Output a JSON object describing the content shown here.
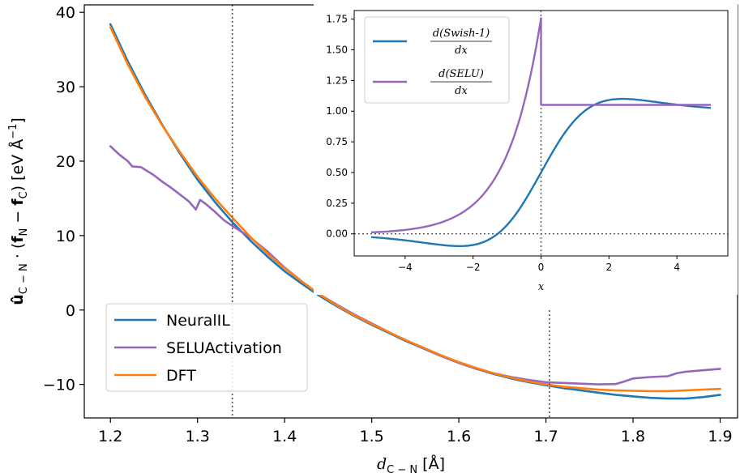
{
  "colors": {
    "neuralil": "#1f77b4",
    "selu": "#9467bd",
    "dft": "#ff7f0e",
    "refline": "#555555"
  },
  "chart_data": [
    {
      "id": "main",
      "type": "line",
      "xlabel": "d_C−N [Å]",
      "ylabel": "û_C−N · (f_N − f_C) [eV Å⁻¹]",
      "xlim": [
        1.17,
        1.92
      ],
      "ylim": [
        -14.5,
        41
      ],
      "xticks": [
        1.2,
        1.3,
        1.4,
        1.5,
        1.6,
        1.7,
        1.8,
        1.9
      ],
      "xtick_labels": [
        "1.2",
        "1.3",
        "1.4",
        "1.5",
        "1.6",
        "1.7",
        "1.8",
        "1.9"
      ],
      "yticks": [
        -10,
        0,
        10,
        20,
        30,
        40
      ],
      "ytick_labels": [
        "−10",
        "0",
        "10",
        "20",
        "30",
        "40"
      ],
      "vlines": [
        1.34,
        1.704
      ],
      "legend": {
        "placement": "lower-left",
        "entries": [
          "NeuralIL",
          "SELUActivation",
          "DFT"
        ]
      },
      "series": [
        {
          "name": "NeuralIL",
          "color_key": "neuralil",
          "points": [
            [
              1.2,
              38.4
            ],
            [
              1.22,
              33.4
            ],
            [
              1.24,
              28.9
            ],
            [
              1.26,
              24.8
            ],
            [
              1.28,
              21.0
            ],
            [
              1.3,
              17.5
            ],
            [
              1.32,
              14.5
            ],
            [
              1.34,
              11.8
            ],
            [
              1.36,
              9.4
            ],
            [
              1.38,
              7.2
            ],
            [
              1.4,
              5.2
            ],
            [
              1.42,
              3.5
            ],
            [
              1.44,
              1.9
            ],
            [
              1.46,
              0.5
            ],
            [
              1.48,
              -0.8
            ],
            [
              1.5,
              -2.0
            ],
            [
              1.52,
              -3.1
            ],
            [
              1.54,
              -4.2
            ],
            [
              1.56,
              -5.2
            ],
            [
              1.58,
              -6.2
            ],
            [
              1.6,
              -7.1
            ],
            [
              1.62,
              -7.9
            ],
            [
              1.64,
              -8.6
            ],
            [
              1.66,
              -9.2
            ],
            [
              1.68,
              -9.7
            ],
            [
              1.7,
              -10.1
            ],
            [
              1.72,
              -10.5
            ],
            [
              1.74,
              -10.8
            ],
            [
              1.76,
              -11.1
            ],
            [
              1.78,
              -11.4
            ],
            [
              1.8,
              -11.6
            ],
            [
              1.82,
              -11.8
            ],
            [
              1.84,
              -11.9
            ],
            [
              1.86,
              -11.9
            ],
            [
              1.88,
              -11.7
            ],
            [
              1.9,
              -11.4
            ]
          ]
        },
        {
          "name": "SELUActivation",
          "color_key": "selu",
          "points": [
            [
              1.2,
              22.0
            ],
            [
              1.21,
              20.9
            ],
            [
              1.22,
              20.0
            ],
            [
              1.225,
              19.3
            ],
            [
              1.235,
              19.2
            ],
            [
              1.25,
              18.1
            ],
            [
              1.26,
              17.2
            ],
            [
              1.27,
              16.4
            ],
            [
              1.28,
              15.5
            ],
            [
              1.29,
              14.6
            ],
            [
              1.298,
              13.5
            ],
            [
              1.303,
              14.8
            ],
            [
              1.31,
              14.2
            ],
            [
              1.32,
              13.2
            ],
            [
              1.33,
              12.1
            ],
            [
              1.34,
              11.3
            ],
            [
              1.36,
              9.8
            ],
            [
              1.38,
              7.9
            ],
            [
              1.4,
              5.7
            ],
            [
              1.42,
              3.8
            ],
            [
              1.44,
              2.1
            ],
            [
              1.46,
              0.7
            ],
            [
              1.48,
              -0.6
            ],
            [
              1.5,
              -1.8
            ],
            [
              1.52,
              -3.0
            ],
            [
              1.54,
              -4.1
            ],
            [
              1.56,
              -5.2
            ],
            [
              1.58,
              -6.2
            ],
            [
              1.6,
              -7.1
            ],
            [
              1.62,
              -7.9
            ],
            [
              1.64,
              -8.5
            ],
            [
              1.66,
              -9.0
            ],
            [
              1.68,
              -9.4
            ],
            [
              1.7,
              -9.7
            ],
            [
              1.72,
              -9.8
            ],
            [
              1.74,
              -9.9
            ],
            [
              1.76,
              -10.0
            ],
            [
              1.78,
              -9.95
            ],
            [
              1.79,
              -9.6
            ],
            [
              1.8,
              -9.2
            ],
            [
              1.82,
              -9.0
            ],
            [
              1.84,
              -8.9
            ],
            [
              1.85,
              -8.5
            ],
            [
              1.86,
              -8.3
            ],
            [
              1.88,
              -8.1
            ],
            [
              1.9,
              -7.9
            ]
          ]
        },
        {
          "name": "DFT",
          "color_key": "dft",
          "points": [
            [
              1.2,
              38.0
            ],
            [
              1.22,
              33.0
            ],
            [
              1.24,
              28.6
            ],
            [
              1.26,
              24.7
            ],
            [
              1.28,
              21.2
            ],
            [
              1.3,
              17.9
            ],
            [
              1.32,
              15.0
            ],
            [
              1.34,
              12.4
            ],
            [
              1.36,
              9.9
            ],
            [
              1.38,
              7.6
            ],
            [
              1.4,
              5.6
            ],
            [
              1.42,
              3.8
            ],
            [
              1.44,
              2.1
            ],
            [
              1.46,
              0.6
            ],
            [
              1.48,
              -0.7
            ],
            [
              1.5,
              -1.9
            ],
            [
              1.52,
              -3.0
            ],
            [
              1.54,
              -4.1
            ],
            [
              1.56,
              -5.1
            ],
            [
              1.58,
              -6.1
            ],
            [
              1.6,
              -7.0
            ],
            [
              1.62,
              -7.8
            ],
            [
              1.64,
              -8.5
            ],
            [
              1.66,
              -9.1
            ],
            [
              1.68,
              -9.6
            ],
            [
              1.7,
              -10.0
            ],
            [
              1.72,
              -10.3
            ],
            [
              1.74,
              -10.5
            ],
            [
              1.76,
              -10.7
            ],
            [
              1.78,
              -10.8
            ],
            [
              1.8,
              -10.85
            ],
            [
              1.82,
              -10.9
            ],
            [
              1.84,
              -10.9
            ],
            [
              1.86,
              -10.8
            ],
            [
              1.88,
              -10.7
            ],
            [
              1.9,
              -10.6
            ]
          ]
        }
      ]
    },
    {
      "id": "inset",
      "type": "line",
      "xlabel": "x",
      "ylabel": "",
      "xlim": [
        -5.5,
        5.5
      ],
      "ylim": [
        -0.18,
        1.82
      ],
      "xticks": [
        -4,
        -2,
        0,
        2,
        4
      ],
      "xtick_labels": [
        "−4",
        "−2",
        "0",
        "2",
        "4"
      ],
      "yticks": [
        0.0,
        0.25,
        0.5,
        0.75,
        1.0,
        1.25,
        1.5,
        1.75
      ],
      "ytick_labels": [
        "0.00",
        "0.25",
        "0.50",
        "0.75",
        "1.00",
        "1.25",
        "1.50",
        "1.75"
      ],
      "hline": 0,
      "vline": 0,
      "legend": {
        "placement": "upper-left"
      },
      "series": [
        {
          "name_numerator": "d(Swish-1)",
          "name_denominator": "dx",
          "color_key": "neuralil",
          "function": "dswish"
        },
        {
          "name_numerator": "d(SELU)",
          "name_denominator": "dx",
          "color_key": "selu",
          "function": "dselu"
        }
      ]
    }
  ]
}
